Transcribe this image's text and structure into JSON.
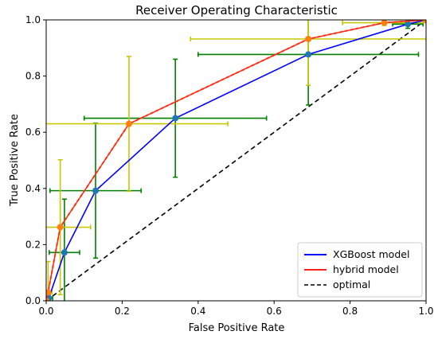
{
  "chart_data": {
    "type": "line",
    "title": "Receiver Operating Characteristic",
    "xlabel": "False Positive Rate",
    "ylabel": "True Positive Rate",
    "xlim": [
      0,
      1
    ],
    "ylim": [
      0,
      1
    ],
    "xticks": [
      "0.0",
      "0.2",
      "0.4",
      "0.6",
      "0.8",
      "1.0"
    ],
    "yticks": [
      "0.0",
      "0.2",
      "0.4",
      "0.6",
      "0.8",
      "1.0"
    ],
    "grid": false,
    "legend_position": "bottom-right",
    "series": [
      {
        "name": "XGBoost model",
        "color": "#0000ff",
        "marker_color": "#1f77b4",
        "errorbar_color": "#008000",
        "points": [
          {
            "x": 0.0,
            "y": 0.0,
            "xerr": 0.0,
            "yerr": 0.0
          },
          {
            "x": 0.007,
            "y": 0.01,
            "xerr": 0.01,
            "yerr": 0.02
          },
          {
            "x": 0.048,
            "y": 0.172,
            "xerr": 0.04,
            "yerr": 0.19
          },
          {
            "x": 0.13,
            "y": 0.392,
            "xerr": 0.12,
            "yerr": 0.24
          },
          {
            "x": 0.34,
            "y": 0.65,
            "xerr": 0.24,
            "yerr": 0.21
          },
          {
            "x": 0.69,
            "y": 0.877,
            "xerr": 0.29,
            "yerr": 0.18
          },
          {
            "x": 0.952,
            "y": 0.985,
            "xerr": 0.04,
            "yerr": 0.015
          },
          {
            "x": 1.0,
            "y": 1.0,
            "xerr": 0.0,
            "yerr": 0.0
          }
        ]
      },
      {
        "name": "hybrid model",
        "color": "#ff2020",
        "marker_color": "#ff7f0e",
        "errorbar_color": "#c8c800",
        "points": [
          {
            "x": 0.0,
            "y": 0.0,
            "xerr": 0.0,
            "yerr": 0.0
          },
          {
            "x": 0.005,
            "y": 0.03,
            "xerr": 0.01,
            "yerr": 0.11
          },
          {
            "x": 0.037,
            "y": 0.262,
            "xerr": 0.08,
            "yerr": 0.24
          },
          {
            "x": 0.218,
            "y": 0.63,
            "xerr": 0.26,
            "yerr": 0.24
          },
          {
            "x": 0.69,
            "y": 0.932,
            "xerr": 0.31,
            "yerr": 0.165
          },
          {
            "x": 0.89,
            "y": 0.99,
            "xerr": 0.11,
            "yerr": 0.01
          },
          {
            "x": 1.0,
            "y": 1.0,
            "xerr": 0.0,
            "yerr": 0.0
          }
        ]
      },
      {
        "name": "optimal",
        "color": "#000000",
        "dashed": true,
        "points": [
          {
            "x": 0.0,
            "y": 0.0
          },
          {
            "x": 1.0,
            "y": 1.0
          }
        ]
      }
    ]
  }
}
